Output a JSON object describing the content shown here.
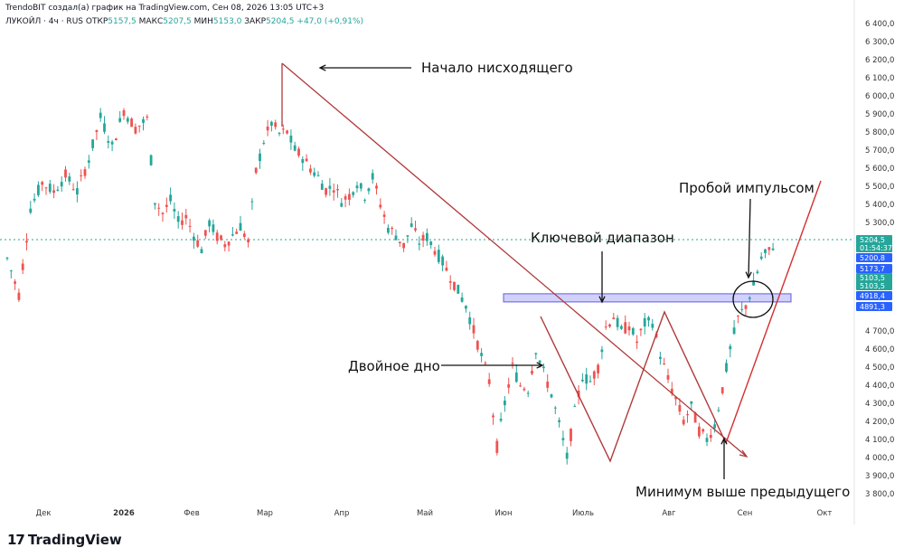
{
  "header": {
    "attribution": "TrendoBIT создал(а) график на TradingView.com, Сен 08, 2026 13:05 UTC+3",
    "symbol": "ЛУКОЙЛ · 4ч · RUS",
    "open_label": "ОТКР",
    "open_value": "5157,5",
    "high_label": "МАКС",
    "high_value": "5207,5",
    "low_label": "МИН",
    "low_value": "5153,0",
    "close_label": "ЗАКР",
    "close_value": "5204,5",
    "change": "+47,0 (+0,91%)"
  },
  "footer": {
    "brand": "TradingView",
    "logo_glyph": "17"
  },
  "colors": {
    "up": "#26a69a",
    "down": "#ef5350",
    "trendline": "#b03a3a",
    "range": "#7b7bf5",
    "last_price": "#2962ff"
  },
  "chart_data": {
    "type": "candlestick",
    "x_tick_labels": [
      "Дек",
      "2026",
      "Фев",
      "Мар",
      "Апр",
      "Май",
      "Июн",
      "Июль",
      "Авг",
      "Сен",
      "Окт"
    ],
    "y_tick_labels": [
      "6 400,0",
      "6 300,0",
      "6 200,0",
      "6 100,0",
      "6 000,0",
      "5 900,0",
      "5 800,0",
      "5 700,0",
      "5 600,0",
      "5 500,0",
      "5 400,0",
      "5 300,0",
      "4 700,0",
      "4 600,0",
      "4 500,0",
      "4 400,0",
      "4 300,0",
      "4 200,0",
      "4 100,0",
      "4 000,0",
      "3 900,0",
      "3 800,0"
    ],
    "ylim": [
      3740,
      6440
    ],
    "price_labels": [
      {
        "text": "5204,5",
        "value": 5204.5,
        "color": "#26a69a"
      },
      {
        "text": "01:54:37",
        "value": 5204.5,
        "color": "#26a69a"
      },
      {
        "text": "5200,8",
        "value": 5200.8,
        "color": "#2962ff"
      },
      {
        "text": "5173,7",
        "value": 5173.7,
        "color": "#2962ff"
      },
      {
        "text": "5103,5",
        "value": 5103.5,
        "color": "#26a69a"
      },
      {
        "text": "5103,5",
        "value": 5103.5,
        "color": "#26a69a"
      },
      {
        "text": "4918,4",
        "value": 4918.4,
        "color": "#2962ff"
      },
      {
        "text": "4891,3",
        "value": 4891.3,
        "color": "#2962ff"
      }
    ],
    "price_path": [
      [
        0,
        5100
      ],
      [
        3,
        4900
      ],
      [
        6,
        5380
      ],
      [
        9,
        5520
      ],
      [
        12,
        5470
      ],
      [
        15,
        5560
      ],
      [
        18,
        5470
      ],
      [
        21,
        5650
      ],
      [
        24,
        5880
      ],
      [
        27,
        5720
      ],
      [
        30,
        5920
      ],
      [
        33,
        5820
      ],
      [
        36,
        5870
      ],
      [
        38,
        5420
      ],
      [
        40,
        5350
      ],
      [
        42,
        5420
      ],
      [
        44,
        5300
      ],
      [
        46,
        5330
      ],
      [
        48,
        5230
      ],
      [
        50,
        5150
      ],
      [
        52,
        5300
      ],
      [
        54,
        5220
      ],
      [
        56,
        5180
      ],
      [
        58,
        5230
      ],
      [
        60,
        5280
      ],
      [
        62,
        5190
      ],
      [
        64,
        5580
      ],
      [
        66,
        5750
      ],
      [
        68,
        5850
      ],
      [
        70,
        5790
      ],
      [
        72,
        5800
      ],
      [
        74,
        5700
      ],
      [
        76,
        5660
      ],
      [
        78,
        5600
      ],
      [
        80,
        5550
      ],
      [
        82,
        5480
      ],
      [
        84,
        5500
      ],
      [
        86,
        5420
      ],
      [
        88,
        5450
      ],
      [
        90,
        5520
      ],
      [
        92,
        5450
      ],
      [
        94,
        5550
      ],
      [
        96,
        5400
      ],
      [
        98,
        5270
      ],
      [
        100,
        5230
      ],
      [
        102,
        5170
      ],
      [
        104,
        5280
      ],
      [
        106,
        5190
      ],
      [
        108,
        5220
      ],
      [
        110,
        5150
      ],
      [
        112,
        5080
      ],
      [
        114,
        5000
      ],
      [
        116,
        4920
      ],
      [
        118,
        4840
      ],
      [
        120,
        4700
      ],
      [
        122,
        4560
      ],
      [
        124,
        4420
      ],
      [
        126,
        4060
      ],
      [
        128,
        4300
      ],
      [
        130,
        4500
      ],
      [
        132,
        4400
      ],
      [
        134,
        4380
      ],
      [
        136,
        4600
      ],
      [
        138,
        4470
      ],
      [
        140,
        4350
      ],
      [
        142,
        4180
      ],
      [
        144,
        4000
      ],
      [
        146,
        4250
      ],
      [
        148,
        4450
      ],
      [
        150,
        4420
      ],
      [
        152,
        4500
      ],
      [
        154,
        4720
      ],
      [
        156,
        4780
      ],
      [
        158,
        4700
      ],
      [
        160,
        4730
      ],
      [
        162,
        4640
      ],
      [
        164,
        4740
      ],
      [
        166,
        4750
      ],
      [
        168,
        4570
      ],
      [
        170,
        4430
      ],
      [
        172,
        4320
      ],
      [
        174,
        4200
      ],
      [
        176,
        4280
      ],
      [
        178,
        4150
      ],
      [
        180,
        4100
      ],
      [
        182,
        4180
      ],
      [
        184,
        4380
      ],
      [
        186,
        4600
      ],
      [
        188,
        4770
      ],
      [
        190,
        4840
      ],
      [
        192,
        4950
      ],
      [
        194,
        5100
      ],
      [
        196,
        5140
      ],
      [
        198,
        5205
      ]
    ],
    "annotations": [
      {
        "text": "Начало нисходящего"
      },
      {
        "text": "Ключевой диапазон"
      },
      {
        "text": "Пробой импульсом"
      },
      {
        "text": "Двойное дно"
      },
      {
        "text": "Минимум выше предыдущего"
      }
    ],
    "key_range": [
      4860,
      4900
    ],
    "downtrend_line": [
      [
        70,
        6180
      ],
      [
        192,
        4020
      ]
    ]
  }
}
